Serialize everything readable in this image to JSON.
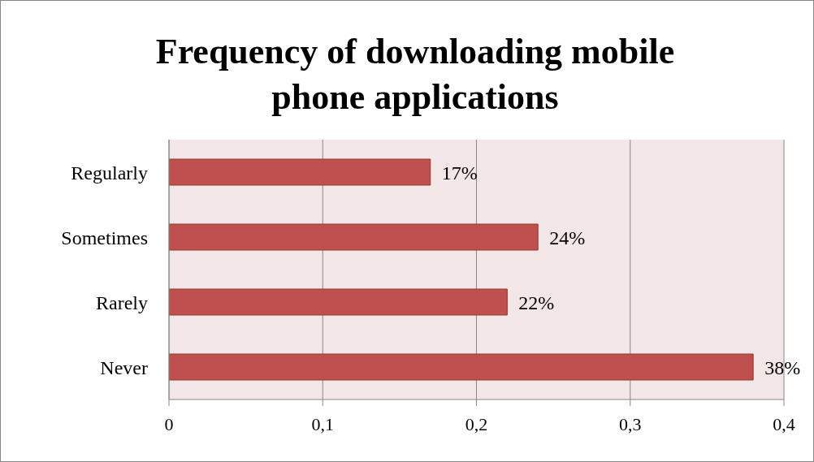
{
  "chart_data": {
    "type": "bar",
    "orientation": "horizontal",
    "title": "Frequency of downloading mobile phone applications",
    "categories": [
      "Regularly",
      "Sometimes",
      "Rarely",
      "Never"
    ],
    "values": [
      0.17,
      0.24,
      0.22,
      0.38
    ],
    "value_labels": [
      "17%",
      "24%",
      "22%",
      "38%"
    ],
    "color": "#c0504d",
    "xlim": [
      0,
      0.4
    ],
    "xticks": [
      0,
      {
        "value": 0.1,
        "label": "0,1"
      },
      {
        "value": 0.2,
        "label": "0,2"
      },
      {
        "value": 0.3,
        "label": "0,3"
      },
      {
        "value": 0.4,
        "label": "0,4"
      }
    ],
    "grid": "x",
    "legend": false
  }
}
